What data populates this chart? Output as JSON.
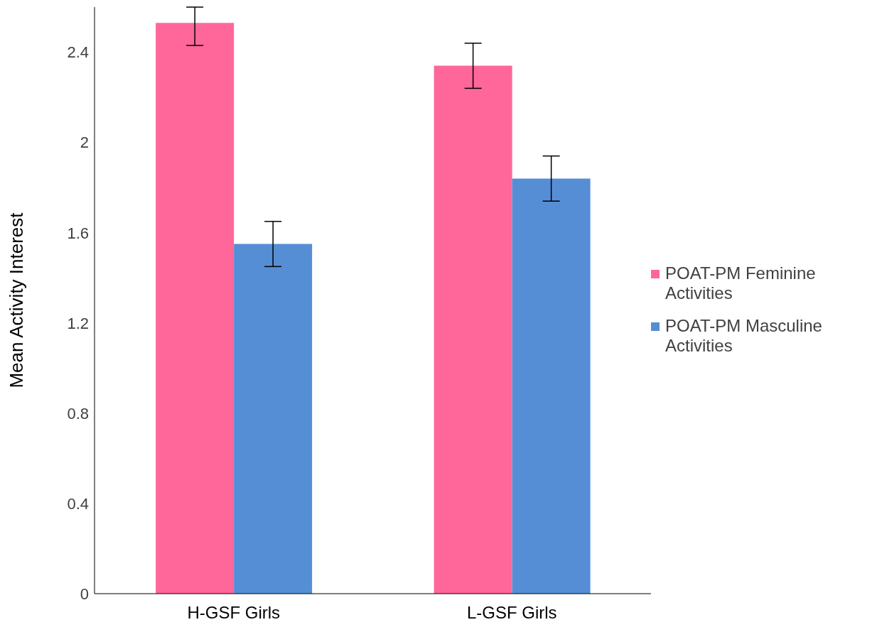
{
  "chart_data": {
    "type": "bar",
    "ylabel": "Mean Activity Interest",
    "categories": [
      "H-GSF Girls",
      "L-GSF Girls"
    ],
    "series": [
      {
        "name": "POAT-PM Feminine Activities",
        "color": "#ff6699",
        "values": [
          2.53,
          2.34
        ],
        "errors": [
          [
            2.43,
            2.6
          ],
          0.1
        ]
      },
      {
        "name": "POAT-PM Masculine Activities",
        "color": "#558ed5",
        "values": [
          1.55,
          1.84
        ],
        "errors": [
          0.1,
          0.1
        ]
      }
    ],
    "ylim": [
      0,
      2.6
    ],
    "yticks": [
      0,
      0.4,
      0.8,
      1.2,
      1.6,
      2,
      2.4
    ],
    "grid": false,
    "legend": "right"
  }
}
